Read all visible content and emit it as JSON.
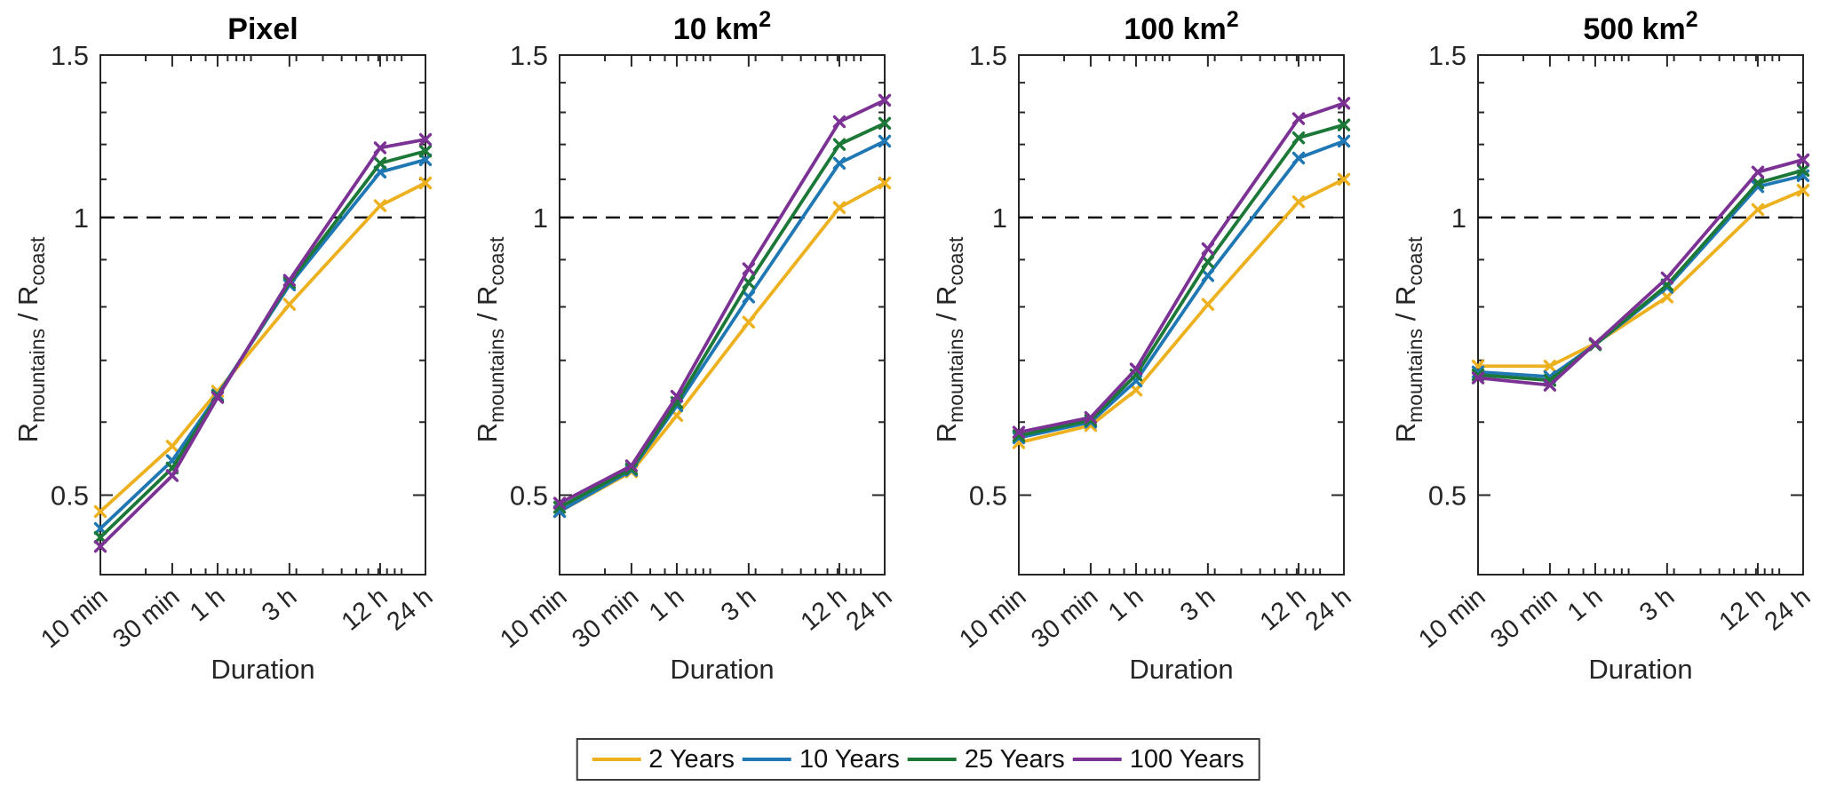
{
  "figure": {
    "xlabel": "Duration",
    "ylabel": {
      "r1": "R",
      "sub1": "mountains",
      "r2": " / R",
      "sub2": "coast",
      "plain": "R_mountains / R_coast"
    },
    "axis_color": "#262626",
    "text_color": "#262626",
    "reference_line": {
      "y": 1,
      "style": "dashed",
      "color": "#111111"
    }
  },
  "axes": {
    "xscale": "log",
    "yscale": "log",
    "xlim_minutes": [
      10,
      1440
    ],
    "ylim": [
      0.41,
      1.5
    ],
    "x_major_ticks": [
      {
        "label": "10 min",
        "minutes": 10
      },
      {
        "label": "30 min",
        "minutes": 30
      },
      {
        "label": "1 h",
        "minutes": 60
      },
      {
        "label": "3 h",
        "minutes": 180
      },
      {
        "label": "12 h",
        "minutes": 720
      },
      {
        "label": "24 h",
        "minutes": 1440
      }
    ],
    "x_minor_minutes": [
      20,
      40,
      50,
      70,
      80,
      90,
      100,
      200,
      300,
      400,
      500,
      600,
      700,
      800,
      900,
      1000
    ],
    "y_major_ticks": [
      {
        "label": "0.5",
        "value": 0.5
      },
      {
        "label": "1",
        "value": 1
      },
      {
        "label": "1.5",
        "value": 1.5
      }
    ],
    "y_minor_values": [
      0.6,
      0.7,
      0.8,
      0.9,
      1.1,
      1.2,
      1.3,
      1.4
    ]
  },
  "legend": {
    "entries": [
      {
        "label": "2 Years",
        "color": "#EDB120"
      },
      {
        "label": "10 Years",
        "color": "#1F78B4"
      },
      {
        "label": "25 Years",
        "color": "#1B7837"
      },
      {
        "label": "100 Years",
        "color": "#7B3294"
      }
    ]
  },
  "chart_data": [
    {
      "type": "line",
      "title": "Pixel",
      "title_base": "Pixel",
      "title_sup": "",
      "x_categories": [
        "10 min",
        "30 min",
        "1 h",
        "3 h",
        "12 h",
        "24 h"
      ],
      "x_minutes": [
        10,
        30,
        60,
        180,
        720,
        1440
      ],
      "series": [
        {
          "name": "2 Years",
          "color": "#EDB120",
          "values": [
            0.48,
            0.565,
            0.648,
            0.805,
            1.03,
            1.09
          ]
        },
        {
          "name": "10 Years",
          "color": "#1F78B4",
          "values": [
            0.46,
            0.545,
            0.642,
            0.845,
            1.12,
            1.155
          ]
        },
        {
          "name": "25 Years",
          "color": "#1B7837",
          "values": [
            0.45,
            0.535,
            0.64,
            0.85,
            1.145,
            1.18
          ]
        },
        {
          "name": "100 Years",
          "color": "#7B3294",
          "values": [
            0.44,
            0.525,
            0.638,
            0.855,
            1.19,
            1.215
          ]
        }
      ]
    },
    {
      "type": "line",
      "title": "10 km²",
      "title_base": "10 km",
      "title_sup": "2",
      "x_categories": [
        "10 min",
        "30 min",
        "1 h",
        "3 h",
        "12 h",
        "24 h"
      ],
      "x_minutes": [
        10,
        30,
        60,
        180,
        720,
        1440
      ],
      "series": [
        {
          "name": "2 Years",
          "color": "#EDB120",
          "values": [
            0.48,
            0.53,
            0.61,
            0.77,
            1.025,
            1.09
          ]
        },
        {
          "name": "10 Years",
          "color": "#1F78B4",
          "values": [
            0.48,
            0.532,
            0.625,
            0.82,
            1.145,
            1.21
          ]
        },
        {
          "name": "25 Years",
          "color": "#1B7837",
          "values": [
            0.485,
            0.534,
            0.63,
            0.85,
            1.2,
            1.265
          ]
        },
        {
          "name": "100 Years",
          "color": "#7B3294",
          "values": [
            0.49,
            0.538,
            0.64,
            0.88,
            1.27,
            1.34
          ]
        }
      ]
    },
    {
      "type": "line",
      "title": "100 km²",
      "title_base": "100 km",
      "title_sup": "2",
      "x_categories": [
        "10 min",
        "30 min",
        "1 h",
        "3 h",
        "12 h",
        "24 h"
      ],
      "x_minutes": [
        10,
        30,
        60,
        180,
        720,
        1440
      ],
      "series": [
        {
          "name": "2 Years",
          "color": "#EDB120",
          "values": [
            0.57,
            0.595,
            0.65,
            0.805,
            1.04,
            1.1
          ]
        },
        {
          "name": "10 Years",
          "color": "#1F78B4",
          "values": [
            0.577,
            0.6,
            0.665,
            0.865,
            1.16,
            1.21
          ]
        },
        {
          "name": "25 Years",
          "color": "#1B7837",
          "values": [
            0.58,
            0.603,
            0.675,
            0.895,
            1.22,
            1.26
          ]
        },
        {
          "name": "100 Years",
          "color": "#7B3294",
          "values": [
            0.585,
            0.607,
            0.685,
            0.925,
            1.28,
            1.33
          ]
        }
      ]
    },
    {
      "type": "line",
      "title": "500 km²",
      "title_base": "500 km",
      "title_sup": "2",
      "x_categories": [
        "10 min",
        "30 min",
        "1 h",
        "3 h",
        "12 h",
        "24 h"
      ],
      "x_minutes": [
        10,
        30,
        60,
        180,
        720,
        1440
      ],
      "series": [
        {
          "name": "2 Years",
          "color": "#EDB120",
          "values": [
            0.69,
            0.69,
            0.73,
            0.82,
            1.02,
            1.07
          ]
        },
        {
          "name": "10 Years",
          "color": "#1F78B4",
          "values": [
            0.68,
            0.672,
            0.728,
            0.84,
            1.08,
            1.11
          ]
        },
        {
          "name": "25 Years",
          "color": "#1B7837",
          "values": [
            0.675,
            0.666,
            0.728,
            0.845,
            1.09,
            1.125
          ]
        },
        {
          "name": "100 Years",
          "color": "#7B3294",
          "values": [
            0.67,
            0.658,
            0.73,
            0.86,
            1.12,
            1.155
          ]
        }
      ]
    }
  ]
}
